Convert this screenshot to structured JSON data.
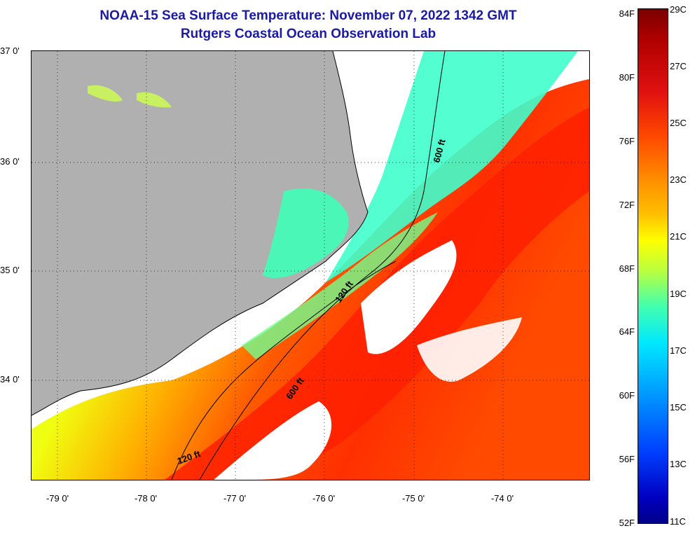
{
  "title_line1": "NOAA-15 Sea Surface Temperature:  November 07, 2022 1342 GMT",
  "title_line2": "Rutgers Coastal Ocean Observation Lab",
  "lat_labels": [
    "37 0'",
    "36 0'",
    "35 0'",
    "34 0'"
  ],
  "lon_labels": [
    "-79 0'",
    "-78 0'",
    "-77 0'",
    "-76 0'",
    "-75 0'",
    "-74 0'"
  ],
  "isobath_labels": [
    "600 ft",
    "120 ft",
    "600 ft",
    "120 ft"
  ],
  "colorbar_f": [
    "84F",
    "80F",
    "76F",
    "72F",
    "68F",
    "64F",
    "60F",
    "56F",
    "52F"
  ],
  "colorbar_c": [
    "29C",
    "27C",
    "25C",
    "23C",
    "21C",
    "19C",
    "17C",
    "15C",
    "13C",
    "11C"
  ],
  "colors": {
    "land": "#b0b0b0",
    "title": "#1a1aa6"
  }
}
